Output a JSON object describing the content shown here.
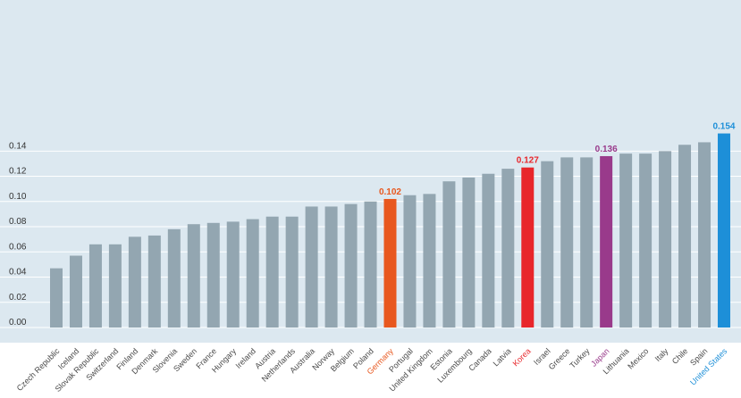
{
  "chart_data": {
    "type": "bar",
    "title": "",
    "xlabel": "",
    "ylabel": "",
    "ylim": [
      0,
      0.156
    ],
    "yticks": [
      "0.00",
      "0.02",
      "0.04",
      "0.06",
      "0.08",
      "0.10",
      "0.12",
      "0.14"
    ],
    "ytick_values": [
      0.0,
      0.02,
      0.04,
      0.06,
      0.08,
      0.1,
      0.12,
      0.14
    ],
    "grid": true,
    "categories": [
      "Czech Republic",
      "Iceland",
      "Slovak Republic",
      "Switzerland",
      "Finland",
      "Denmark",
      "Slovenia",
      "Sweden",
      "France",
      "Hungary",
      "Ireland",
      "Austria",
      "Netherlands",
      "Australia",
      "Norway",
      "Belgium",
      "Poland",
      "Germany",
      "Portugal",
      "United Kingdom",
      "Estonia",
      "Luxembourg",
      "Canada",
      "Latvia",
      "Korea",
      "Israel",
      "Greece",
      "Turkey",
      "Japan",
      "Lithuania",
      "Mexico",
      "Italy",
      "Chile",
      "Spain",
      "United States"
    ],
    "values": [
      0.047,
      0.057,
      0.066,
      0.066,
      0.072,
      0.073,
      0.078,
      0.082,
      0.083,
      0.084,
      0.086,
      0.088,
      0.088,
      0.096,
      0.096,
      0.098,
      0.1,
      0.102,
      0.105,
      0.106,
      0.116,
      0.119,
      0.122,
      0.126,
      0.127,
      0.132,
      0.135,
      0.135,
      0.136,
      0.138,
      0.138,
      0.14,
      0.145,
      0.147,
      0.154
    ],
    "highlights": [
      {
        "category": "Germany",
        "label": "0.102",
        "color": "#e8581f"
      },
      {
        "category": "Korea",
        "label": "0.127",
        "color": "#e8262b"
      },
      {
        "category": "Japan",
        "label": "0.136",
        "color": "#993a8b"
      },
      {
        "category": "United States",
        "label": "0.154",
        "color": "#1d8fd8"
      }
    ],
    "default_bar_color": "#93a6b1",
    "background_color": "#dce8f0",
    "default_label_color": "#4a4a4a"
  }
}
